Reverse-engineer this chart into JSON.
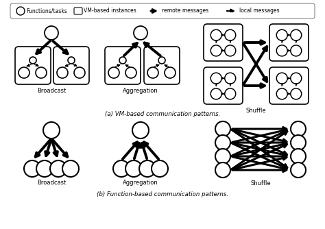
{
  "bg_color": "#ffffff",
  "title_a": "(a) VM-based communication patterns.",
  "title_b": "(b) Function-based communication patterns.",
  "label_broadcast": "Broadcast",
  "label_aggregation": "Aggregation",
  "label_shuffle": "Shuffle"
}
